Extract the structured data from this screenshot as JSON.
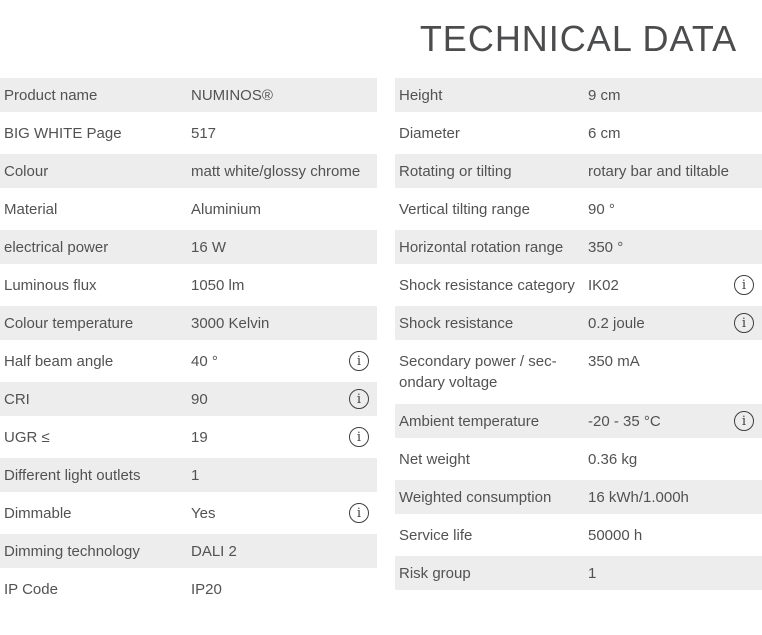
{
  "title": "TECHNICAL DATA",
  "colors": {
    "row_alt_background": "#ededed",
    "text": "#515254",
    "title": "#4b4c4e"
  },
  "icons": {
    "info": "i"
  },
  "tables": {
    "left": {
      "rows": [
        {
          "label": "Product name",
          "value": "NUMINOS®",
          "info": false
        },
        {
          "label": "BIG WHITE Page",
          "value": "517",
          "info": false
        },
        {
          "label": "Colour",
          "value": "matt white/glossy chrome",
          "info": false
        },
        {
          "label": "Material",
          "value": "Aluminium",
          "info": false
        },
        {
          "label": "electrical power",
          "value": "16 W",
          "info": false
        },
        {
          "label": "Luminous flux",
          "value": "1050 lm",
          "info": false
        },
        {
          "label": "Colour temperature",
          "value": "3000 Kelvin",
          "info": false
        },
        {
          "label": "Half beam angle",
          "value": "40 °",
          "info": true
        },
        {
          "label": "CRI",
          "value": "90",
          "info": true
        },
        {
          "label": "UGR ≤",
          "value": "19",
          "info": true
        },
        {
          "label": "Different light outlets",
          "value": "1",
          "info": false
        },
        {
          "label": "Dimmable",
          "value": "Yes",
          "info": true
        },
        {
          "label": "Dimming technology",
          "value": "DALI 2",
          "info": false
        },
        {
          "label": "IP Code",
          "value": "IP20",
          "info": false
        }
      ]
    },
    "right": {
      "rows": [
        {
          "label": "Height",
          "value": "9 cm",
          "info": false
        },
        {
          "label": "Diameter",
          "value": "6 cm",
          "info": false
        },
        {
          "label": "Rotating or tilting",
          "value": "rotary bar and tiltable",
          "info": false
        },
        {
          "label": "Vertical tilting range",
          "value": "90 °",
          "info": false
        },
        {
          "label": "Horizontal rotation range",
          "value": "350 °",
          "info": false
        },
        {
          "label": "Shock resistance category",
          "value": "IK02",
          "info": true
        },
        {
          "label": "Shock resistance",
          "value": "0.2 joule",
          "info": true
        },
        {
          "label": "Secondary power / sec-\nondary voltage",
          "value": "350 mA",
          "info": false,
          "tall": true
        },
        {
          "label": "Ambient temperature",
          "value": "-20 - 35 °C",
          "info": true
        },
        {
          "label": "Net weight",
          "value": "0.36 kg",
          "info": false
        },
        {
          "label": "Weighted consumption",
          "value": "16 kWh/1.000h",
          "info": false
        },
        {
          "label": "Service life",
          "value": "50000 h",
          "info": false
        },
        {
          "label": "Risk group",
          "value": "1",
          "info": false
        }
      ]
    }
  }
}
